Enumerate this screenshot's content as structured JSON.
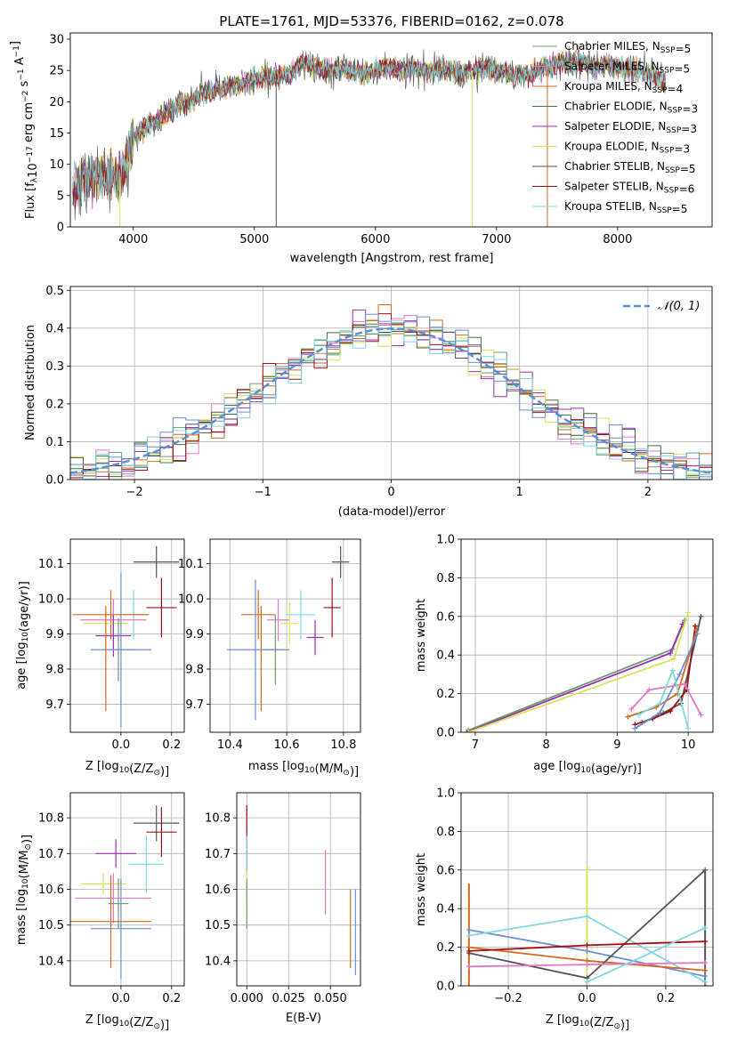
{
  "figure_title": "PLATE=1761, MJD=53376, FIBERID=0162, z=0.078",
  "series_colors": [
    "#6a9e6a",
    "#e377c2",
    "#d2691e",
    "#3c7a3c",
    "#9b30b4",
    "#d8e35a",
    "#555555",
    "#a01010",
    "#7fd7df",
    "#6b8fd6"
  ],
  "chart_data": [
    {
      "type": "line",
      "id": "spectrum",
      "title": "PLATE=1761, MJD=53376, FIBERID=0162, z=0.078",
      "xlabel": "wavelength [Angstrom, rest frame]",
      "ylabel": "Flux [f",
      "ylabel_parts": {
        "a": "Flux [f",
        "sub": "λ",
        "b": "10",
        "sup1": "−17",
        "c": " erg cm",
        "sup2": "−2",
        "d": " s",
        "sup3": "−1",
        "e": " A",
        "sup4": "−1",
        "f": "]"
      },
      "xlim": [
        3480,
        8780
      ],
      "ylim": [
        0,
        31
      ],
      "xticks": [
        4000,
        5000,
        6000,
        7000,
        8000
      ],
      "yticks": [
        0,
        5,
        10,
        15,
        20,
        25,
        30
      ],
      "legend_position": "top-right",
      "legend": [
        {
          "pre": "Chabrier MILES, N",
          "sub": "SSP",
          "post": "=5",
          "color": "#6a9e6a"
        },
        {
          "pre": "Salpeter MILES, N",
          "sub": "SSP",
          "post": "=5",
          "color": "#e377c2"
        },
        {
          "pre": "Kroupa MILES, N",
          "sub": "SSP",
          "post": "=4",
          "color": "#d2691e"
        },
        {
          "pre": "Chabrier ELODIE, N",
          "sub": "SSP",
          "post": "=3",
          "color": "#3c7a3c"
        },
        {
          "pre": "Salpeter ELODIE, N",
          "sub": "SSP",
          "post": "=3",
          "color": "#9b30b4"
        },
        {
          "pre": "Kroupa ELODIE, N",
          "sub": "SSP",
          "post": "=3",
          "color": "#d8e35a"
        },
        {
          "pre": "Chabrier STELIB, N",
          "sub": "SSP",
          "post": "=5",
          "color": "#555555"
        },
        {
          "pre": "Salpeter STELIB, N",
          "sub": "SSP",
          "post": "=6",
          "color": "#a01010"
        },
        {
          "pre": "Kroupa STELIB, N",
          "sub": "SSP",
          "post": "=5",
          "color": "#7fd7df"
        }
      ],
      "envelope": {
        "x": [
          3500,
          3600,
          3700,
          3800,
          3900,
          4000,
          4100,
          4200,
          4300,
          4400,
          4500,
          4600,
          4700,
          4800,
          4900,
          5000,
          5100,
          5200,
          5300,
          5400,
          5500,
          5600,
          5700,
          5800,
          5900,
          6000,
          6100,
          6200,
          6300,
          6400,
          6500,
          6600,
          6700,
          6800,
          6900,
          7000,
          7100,
          7200,
          7300,
          7400,
          7500,
          7600,
          7700,
          7800,
          7900,
          8000,
          8100,
          8200,
          8300,
          8400
        ],
        "y": [
          6.5,
          7.5,
          8.0,
          8.5,
          8.0,
          14.0,
          16.0,
          17.0,
          18.5,
          19.5,
          20.5,
          21.5,
          22.0,
          22.5,
          23.0,
          23.5,
          24.0,
          24.0,
          24.5,
          26.5,
          25.5,
          25.0,
          25.5,
          25.0,
          24.5,
          25.0,
          25.5,
          25.0,
          25.5,
          25.0,
          25.0,
          25.0,
          24.5,
          25.0,
          25.5,
          25.0,
          24.5,
          24.0,
          24.5,
          25.5,
          26.0,
          26.0,
          26.5,
          25.5,
          26.0,
          25.5,
          25.0,
          25.0,
          24.0,
          23.0
        ]
      },
      "noise_amplitude": 1.5,
      "dropouts": [
        {
          "x": 3890,
          "color": "#d8e35a"
        },
        {
          "x": 5180,
          "color": "#555555"
        },
        {
          "x": 6800,
          "color": "#d8e35a"
        },
        {
          "x": 7420,
          "color": "#d2691e"
        }
      ]
    },
    {
      "type": "step",
      "id": "residuals",
      "xlabel": "(data-model)/error",
      "ylabel": "Normed distribution",
      "xlim": [
        -2.5,
        2.5
      ],
      "ylim": [
        0,
        0.51
      ],
      "xticks": [
        -2,
        -1,
        0,
        1,
        2
      ],
      "yticks": [
        0.0,
        0.1,
        0.2,
        0.3,
        0.4,
        0.5
      ],
      "grid": true,
      "legend_position": "top-right",
      "legend_label": "𝒩(0, 1)",
      "legend_color": "#5b8fd6",
      "bin_edges_start": -2.6,
      "bin_width": 0.1,
      "bin_count": 52,
      "jitter": 0.035
    },
    {
      "type": "scatter",
      "id": "age-vs-Z",
      "xlabel_pre": "Z [log",
      "xlabel_sub": "10",
      "xlabel_post": "(Z/Z",
      "xlabel_end": ")]",
      "ylabel": "age  [log10(age/yr)]",
      "ylabel_pre": "age  [log",
      "ylabel_sub": "10",
      "ylabel_post": "(age/yr)]",
      "xlim": [
        -0.2,
        0.25
      ],
      "ylim": [
        9.62,
        10.17
      ],
      "xticks": [
        0.0,
        0.2
      ],
      "yticks": [
        9.7,
        9.8,
        9.9,
        10.0,
        10.1
      ],
      "grid": true,
      "points": [
        {
          "x": 0.14,
          "y": 10.105,
          "xerr": 0.09,
          "yerr": 0.045,
          "color": "#555555"
        },
        {
          "x": 0.16,
          "y": 9.975,
          "xerr": 0.06,
          "yerr": 0.085,
          "color": "#a01010"
        },
        {
          "x": 0.05,
          "y": 9.955,
          "xerr": 0.06,
          "yerr": 0.07,
          "color": "#7fd7df"
        },
        {
          "x": -0.04,
          "y": 9.955,
          "xerr": 0.15,
          "yerr": 0.07,
          "color": "#d2691e"
        },
        {
          "x": -0.03,
          "y": 9.94,
          "xerr": 0.13,
          "yerr": 0.06,
          "color": "#e377c2"
        },
        {
          "x": -0.06,
          "y": 9.93,
          "xerr": 0.09,
          "yerr": 0.03,
          "color": "#d8e35a"
        },
        {
          "x": -0.03,
          "y": 9.895,
          "xerr": 0.07,
          "yerr": 0.06,
          "color": "#9b30b4"
        },
        {
          "x": -0.01,
          "y": 9.855,
          "xerr": 0.06,
          "yerr": 0.09,
          "color": "#6a9e6a"
        },
        {
          "x": 0.0,
          "y": 9.855,
          "xerr": 0.12,
          "yerr": 0.22,
          "color": "#6b8fd6"
        },
        {
          "x": -0.06,
          "y": 9.83,
          "xerr": 0.0,
          "yerr": 0.15,
          "color": "#d2691e"
        }
      ]
    },
    {
      "type": "scatter",
      "id": "age-vs-mass",
      "xlabel_pre": "mass [log",
      "xlabel_sub": "10",
      "xlabel_post": "(M/M",
      "xlabel_end": ")]",
      "xlim": [
        10.33,
        10.86
      ],
      "ylim": [
        9.62,
        10.17
      ],
      "xticks": [
        10.4,
        10.6,
        10.8
      ],
      "yticks": [
        9.7,
        9.8,
        9.9,
        10.0,
        10.1
      ],
      "grid": true,
      "points": [
        {
          "x": 10.79,
          "y": 10.105,
          "xerr": 0.03,
          "yerr": 0.045,
          "color": "#555555"
        },
        {
          "x": 10.76,
          "y": 9.975,
          "xerr": 0.03,
          "yerr": 0.085,
          "color": "#a01010"
        },
        {
          "x": 10.65,
          "y": 9.955,
          "xerr": 0.05,
          "yerr": 0.07,
          "color": "#7fd7df"
        },
        {
          "x": 10.5,
          "y": 9.955,
          "xerr": 0.06,
          "yerr": 0.07,
          "color": "#d2691e"
        },
        {
          "x": 10.57,
          "y": 9.94,
          "xerr": 0.04,
          "yerr": 0.06,
          "color": "#e377c2"
        },
        {
          "x": 10.61,
          "y": 9.93,
          "xerr": 0.03,
          "yerr": 0.06,
          "color": "#d8e35a"
        },
        {
          "x": 10.7,
          "y": 9.89,
          "xerr": 0.03,
          "yerr": 0.05,
          "color": "#9b30b4"
        },
        {
          "x": 10.56,
          "y": 9.855,
          "xerr": 0.05,
          "yerr": 0.1,
          "color": "#6a9e6a"
        },
        {
          "x": 10.49,
          "y": 9.855,
          "xerr": 0.1,
          "yerr": 0.2,
          "color": "#6b8fd6"
        },
        {
          "x": 10.51,
          "y": 9.83,
          "xerr": 0.0,
          "yerr": 0.15,
          "color": "#d2691e"
        }
      ]
    },
    {
      "type": "line",
      "id": "mass-weight-vs-age",
      "xlabel_pre": "age  [log",
      "xlabel_sub": "10",
      "xlabel_post": "(age/yr)]",
      "ylabel": "mass weight",
      "xlim": [
        6.8,
        10.35
      ],
      "ylim": [
        0,
        1.0
      ],
      "xticks": [
        7,
        8,
        9,
        10
      ],
      "yticks": [
        0.0,
        0.2,
        0.4,
        0.6,
        0.8,
        1.0
      ],
      "grid": true,
      "series": [
        {
          "color": "#6a9e6a",
          "x": [
            6.9,
            9.78,
            9.95
          ],
          "y": [
            0.01,
            0.43,
            0.58
          ]
        },
        {
          "color": "#9b30b4",
          "x": [
            6.88,
            9.75,
            9.92
          ],
          "y": [
            0.0,
            0.41,
            0.56
          ]
        },
        {
          "color": "#d8e35a",
          "x": [
            6.9,
            9.8,
            10.0
          ],
          "y": [
            0.0,
            0.38,
            0.62
          ]
        },
        {
          "color": "#555555",
          "x": [
            9.35,
            9.65,
            9.9,
            10.18
          ],
          "y": [
            0.05,
            0.1,
            0.15,
            0.6
          ]
        },
        {
          "color": "#a01010",
          "x": [
            9.25,
            9.5,
            9.75,
            9.98,
            10.1
          ],
          "y": [
            0.04,
            0.07,
            0.11,
            0.22,
            0.55
          ]
        },
        {
          "color": "#d2691e",
          "x": [
            9.15,
            9.55,
            9.85,
            10.12
          ],
          "y": [
            0.08,
            0.13,
            0.2,
            0.53
          ]
        },
        {
          "color": "#6b8fd6",
          "x": [
            9.25,
            9.6,
            9.88,
            10.13
          ],
          "y": [
            0.02,
            0.1,
            0.3,
            0.51
          ]
        },
        {
          "color": "#e377c2",
          "x": [
            9.2,
            9.45,
            9.95,
            10.18
          ],
          "y": [
            0.12,
            0.22,
            0.25,
            0.09
          ]
        },
        {
          "color": "#7fd7df",
          "x": [
            9.3,
            9.6,
            9.78,
            10.0
          ],
          "y": [
            0.09,
            0.15,
            0.32,
            0.02
          ]
        }
      ]
    },
    {
      "type": "scatter",
      "id": "mass-vs-Z",
      "xlabel_pre": "Z [log",
      "xlabel_sub": "10",
      "xlabel_post": "(Z/Z",
      "xlabel_end": ")]",
      "ylabel_pre": "mass [log",
      "ylabel_sub": "10",
      "ylabel_post": "(M/M",
      "ylabel_end": ")]",
      "xlim": [
        -0.2,
        0.25
      ],
      "ylim": [
        10.33,
        10.87
      ],
      "xticks": [
        0.0,
        0.2
      ],
      "yticks": [
        10.4,
        10.5,
        10.6,
        10.7,
        10.8
      ],
      "grid": true,
      "points": [
        {
          "x": 0.14,
          "y": 10.785,
          "xerr": 0.09,
          "yerr": 0.05,
          "color": "#555555"
        },
        {
          "x": 0.16,
          "y": 10.76,
          "xerr": 0.06,
          "yerr": 0.07,
          "color": "#a01010"
        },
        {
          "x": -0.02,
          "y": 10.7,
          "xerr": 0.08,
          "yerr": 0.04,
          "color": "#9b30b4"
        },
        {
          "x": 0.1,
          "y": 10.67,
          "xerr": 0.07,
          "yerr": 0.08,
          "color": "#7fd7df"
        },
        {
          "x": -0.07,
          "y": 10.615,
          "xerr": 0.09,
          "yerr": 0.03,
          "color": "#d8e35a"
        },
        {
          "x": -0.03,
          "y": 10.575,
          "xerr": 0.15,
          "yerr": 0.07,
          "color": "#e377c2"
        },
        {
          "x": -0.01,
          "y": 10.56,
          "xerr": 0.04,
          "yerr": 0.07,
          "color": "#6a9e6a"
        },
        {
          "x": -0.04,
          "y": 10.51,
          "xerr": 0.16,
          "yerr": 0.13,
          "color": "#d2691e"
        },
        {
          "x": 0.0,
          "y": 10.49,
          "xerr": 0.12,
          "yerr": 0.14,
          "color": "#6b8fd6"
        }
      ]
    },
    {
      "type": "scatter",
      "id": "mass-vs-ebv",
      "xlabel": "E(B-V)",
      "xlim": [
        -0.006,
        0.068
      ],
      "ylim": [
        10.33,
        10.87
      ],
      "xticks": [
        0.0,
        0.025,
        0.05
      ],
      "xtick_labels": [
        "0.000",
        "0.025",
        "0.050"
      ],
      "yticks": [
        10.4,
        10.5,
        10.6,
        10.7,
        10.8
      ],
      "grid": true,
      "points": [
        {
          "x": 0.0,
          "y": 10.785,
          "xerr": 0,
          "yerr": 0.05,
          "color": "#a01010"
        },
        {
          "x": 0.0,
          "y": 10.7,
          "xerr": 0,
          "yerr": 0.06,
          "color": "#9b30b4"
        },
        {
          "x": 0.0,
          "y": 10.67,
          "xerr": 0,
          "yerr": 0.08,
          "color": "#7fd7df"
        },
        {
          "x": 0.0,
          "y": 10.615,
          "xerr": 0,
          "yerr": 0.04,
          "color": "#d8e35a"
        },
        {
          "x": 0.0,
          "y": 10.56,
          "xerr": 0,
          "yerr": 0.07,
          "color": "#6a9e6a"
        },
        {
          "x": 0.047,
          "y": 10.62,
          "xerr": 0,
          "yerr": 0.09,
          "color": "#e377c2"
        },
        {
          "x": 0.062,
          "y": 10.49,
          "xerr": 0,
          "yerr": 0.11,
          "color": "#d2691e"
        },
        {
          "x": 0.065,
          "y": 10.48,
          "xerr": 0,
          "yerr": 0.12,
          "color": "#6b8fd6"
        }
      ]
    },
    {
      "type": "line",
      "id": "mass-weight-vs-Z",
      "xlabel_pre": "Z [log",
      "xlabel_sub": "10",
      "xlabel_post": "(Z/Z",
      "xlabel_end": ")]",
      "ylabel": "mass weight",
      "xlim": [
        -0.32,
        0.32
      ],
      "ylim": [
        0,
        1.0
      ],
      "xticks": [
        -0.2,
        0.0,
        0.2
      ],
      "xtick_labels": [
        "−0.2",
        "0.0",
        "0.2"
      ],
      "yticks": [
        0.0,
        0.2,
        0.4,
        0.6,
        0.8,
        1.0
      ],
      "grid": true,
      "series": [
        {
          "color": "#6b8fd6",
          "x": [
            -0.3,
            0.0,
            0.3
          ],
          "y": [
            0.29,
            0.18,
            0.05
          ]
        },
        {
          "color": "#7fd7df",
          "x": [
            -0.3,
            0.0,
            0.3
          ],
          "y": [
            0.26,
            0.36,
            0.02
          ]
        },
        {
          "color": "#d2691e",
          "x": [
            -0.3,
            0.0,
            0.3
          ],
          "y": [
            0.2,
            0.13,
            0.08
          ]
        },
        {
          "color": "#555555",
          "x": [
            -0.3,
            0.0,
            0.3
          ],
          "y": [
            0.17,
            0.04,
            0.6
          ]
        },
        {
          "color": "#a01010",
          "x": [
            -0.3,
            0.0,
            0.3
          ],
          "y": [
            0.18,
            0.21,
            0.23
          ]
        },
        {
          "color": "#e377c2",
          "x": [
            -0.3,
            0.0,
            0.3
          ],
          "y": [
            0.1,
            0.11,
            0.12
          ]
        },
        {
          "color": "#7fd7df",
          "x": [
            0.0,
            0.3
          ],
          "y": [
            0.02,
            0.3
          ]
        }
      ],
      "vertical_stacks": [
        {
          "x": -0.3,
          "lo": 0.0,
          "hi": 0.53,
          "color": "#d2691e"
        },
        {
          "x": 0.0,
          "lo": 0.0,
          "hi": 0.62,
          "color": "#d8e35a"
        },
        {
          "x": 0.3,
          "lo": 0.0,
          "hi": 0.6,
          "color": "#555555"
        }
      ]
    }
  ]
}
